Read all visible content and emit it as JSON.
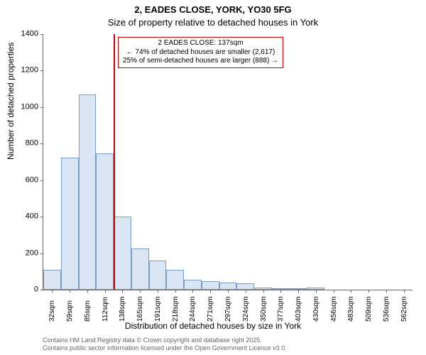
{
  "title_line1": "2, EADES CLOSE, YORK, YO30 5FG",
  "title_line2": "Size of property relative to detached houses in York",
  "ylabel": "Number of detached properties",
  "xlabel": "Distribution of detached houses by size in York",
  "chart": {
    "type": "histogram",
    "ylim": [
      0,
      1400
    ],
    "ytick_step": 200,
    "yticks": [
      0,
      200,
      400,
      600,
      800,
      1000,
      1200,
      1400
    ],
    "categories": [
      "32sqm",
      "59sqm",
      "85sqm",
      "112sqm",
      "138sqm",
      "165sqm",
      "191sqm",
      "218sqm",
      "244sqm",
      "271sqm",
      "297sqm",
      "324sqm",
      "350sqm",
      "377sqm",
      "403sqm",
      "430sqm",
      "456sqm",
      "483sqm",
      "509sqm",
      "536sqm",
      "562sqm"
    ],
    "values": [
      110,
      725,
      1070,
      745,
      400,
      225,
      160,
      110,
      55,
      45,
      40,
      35,
      10,
      5,
      5,
      10,
      0,
      0,
      0,
      0,
      0
    ],
    "bar_fill": "#dbe6f4",
    "bar_stroke": "#7a9cc6",
    "background_color": "#ffffff",
    "axis_color": "#666666",
    "bar_width_ratio": 1.0
  },
  "marker": {
    "vline_color": "#cc0000",
    "vline_category_index": 4,
    "annotation_lines": [
      "2 EADES CLOSE: 137sqm",
      "← 74% of detached houses are smaller (2,617)",
      "25% of semi-detached houses are larger (888) →"
    ],
    "box_border_color": "#cc0000"
  },
  "footnote_line1": "Contains HM Land Registry data © Crown copyright and database right 2025.",
  "footnote_line2": "Contains public sector information licensed under the Open Government Licence v3.0."
}
